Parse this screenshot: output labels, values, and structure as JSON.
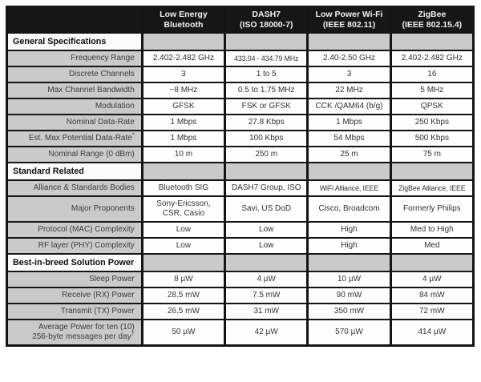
{
  "colors": {
    "header_bg": "#161616",
    "header_text": "#f2f2f2",
    "cell_gray": "#cacaca",
    "cell_white": "#fefefe",
    "border": "#141414",
    "text": "#333333"
  },
  "chart_data": {
    "type": "table",
    "corner_label": "",
    "column_headers": [
      "Low Energy\nBluetooth",
      "DASH7\n(ISO 18000-7)",
      "Low Power Wi-Fi\n(IEEE 802.11)",
      "ZigBee\n(IEEE 802.15.4)"
    ],
    "sections": [
      {
        "label": "General Specifications",
        "rows": [
          {
            "label": "Frequency Range",
            "values": [
              "2.402-2.482 GHz",
              "433.04 - 434.79 MHz",
              "2.40-2.50 GHz",
              "2.402-2.482 GHz"
            ]
          },
          {
            "label": "Discrete Channels",
            "values": [
              "3",
              "1 to 5",
              "3",
              "16"
            ]
          },
          {
            "label": "Max Channel Bandwidth",
            "values": [
              "~8 MHz",
              "0.5 to 1.75 MHz",
              "22 MHz",
              "5 MHz"
            ]
          },
          {
            "label": "Modulation",
            "values": [
              "GFSK",
              "FSK or GFSK",
              "CCK /QAM64 (b/g)",
              "QPSK"
            ]
          },
          {
            "label": "Nominal Data-Rate",
            "values": [
              "1 Mbps",
              "27.8 Kbps",
              "1 Mbps",
              "250 Kbps"
            ]
          },
          {
            "label": "Est. Max Potential Data-Rate",
            "label_sup": "*",
            "values": [
              "1 Mbps",
              "100 Kbps",
              "54 Mbps",
              "500 Kbps"
            ]
          },
          {
            "label": "Nominal Range (0 dBm)",
            "values": [
              "10 m",
              "250 m",
              "25 m",
              "75 m"
            ]
          }
        ]
      },
      {
        "label": "Standard Related",
        "rows": [
          {
            "label": "Alliance & Standards Bodies",
            "values": [
              "Bluetooth SIG",
              "DASH7 Group, ISO",
              "WiFi Alliance, IEEE",
              "ZigBee Alliance, IEEE"
            ]
          },
          {
            "label": "Major Proponents",
            "values": [
              "Sony-Ericsson,\nCSR, Casio",
              "Savi, US DoD",
              "Cisco, Broadcom",
              "Formerly Philips"
            ]
          },
          {
            "label": "Protocol (MAC) Complexity",
            "values": [
              "Low",
              "Low",
              "High",
              "Med to High"
            ]
          },
          {
            "label": "RF layer (PHY) Complexity",
            "values": [
              "Low",
              "Low",
              "High",
              "Med"
            ]
          }
        ]
      },
      {
        "label": "Best-in-breed Solution Power",
        "rows": [
          {
            "label": "Sleep Power",
            "values": [
              "8 µW",
              "4 µW",
              "10 µW",
              "4 µW"
            ]
          },
          {
            "label": "Receive (RX) Power",
            "values": [
              "28.5 mW",
              "7.5 mW",
              "90 mW",
              "84 mW"
            ]
          },
          {
            "label": "Transmit (TX) Power",
            "values": [
              "26.5 mW",
              "31 mW",
              "350 mW",
              "72 mW"
            ]
          },
          {
            "label": "Average Power for ten (10)\n256-byte messages per day",
            "label_sup": "†",
            "values": [
              "50 µW",
              "42 µW",
              "570 µW",
              "414 µW"
            ]
          }
        ]
      }
    ]
  }
}
